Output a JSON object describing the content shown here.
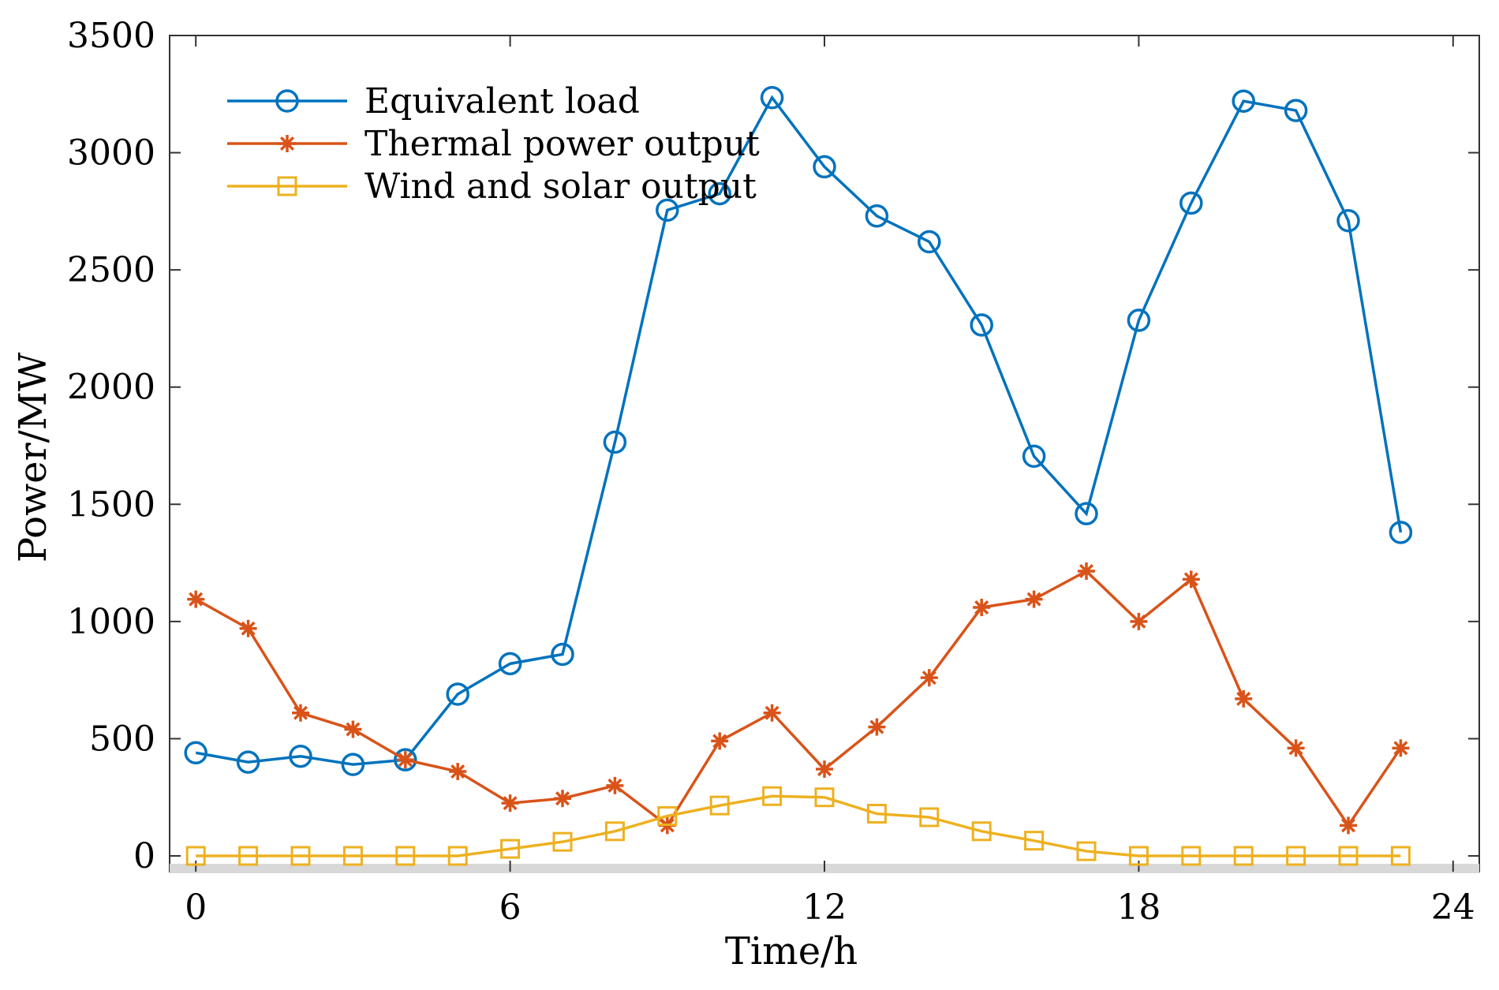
{
  "chart_data": {
    "type": "line",
    "title": "",
    "xlabel": "Time/h",
    "ylabel": "Power/MW",
    "xlim": [
      -0.5,
      24.5
    ],
    "ylim": [
      0,
      3500
    ],
    "xticks": [
      0,
      6,
      12,
      18,
      24
    ],
    "yticks": [
      0,
      500,
      1000,
      1500,
      2000,
      2500,
      3000,
      3500
    ],
    "grid": false,
    "legend_position": "top-left",
    "series": [
      {
        "name": "Equivalent load",
        "color": "#0072BD",
        "marker": "circle",
        "x": [
          0,
          1,
          2,
          3,
          4,
          5,
          6,
          7,
          8,
          9,
          10,
          11,
          12,
          13,
          14,
          15,
          16,
          17,
          18,
          19,
          20,
          21,
          22,
          23
        ],
        "values": [
          440,
          400,
          425,
          390,
          410,
          690,
          820,
          860,
          1765,
          2755,
          2825,
          3235,
          2940,
          2730,
          2620,
          2265,
          1705,
          1460,
          2285,
          2785,
          3220,
          3180,
          2710,
          1380
        ]
      },
      {
        "name": "Thermal power output",
        "color": "#D95319",
        "marker": "star",
        "x": [
          0,
          1,
          2,
          3,
          4,
          5,
          6,
          7,
          8,
          9,
          10,
          11,
          12,
          13,
          14,
          15,
          16,
          17,
          18,
          19,
          20,
          21,
          22,
          23
        ],
        "values": [
          1095,
          970,
          610,
          540,
          410,
          360,
          225,
          245,
          300,
          130,
          490,
          610,
          370,
          550,
          760,
          1060,
          1095,
          1215,
          1000,
          1180,
          670,
          460,
          130,
          460
        ]
      },
      {
        "name": "Wind and solar output",
        "color": "#EDB120",
        "marker": "square",
        "x": [
          0,
          1,
          2,
          3,
          4,
          5,
          6,
          7,
          8,
          9,
          10,
          11,
          12,
          13,
          14,
          15,
          16,
          17,
          18,
          19,
          20,
          21,
          22,
          23
        ],
        "values": [
          0,
          0,
          0,
          0,
          0,
          0,
          30,
          60,
          105,
          170,
          215,
          255,
          250,
          180,
          165,
          105,
          65,
          20,
          0,
          0,
          0,
          0,
          0,
          0
        ]
      }
    ]
  }
}
